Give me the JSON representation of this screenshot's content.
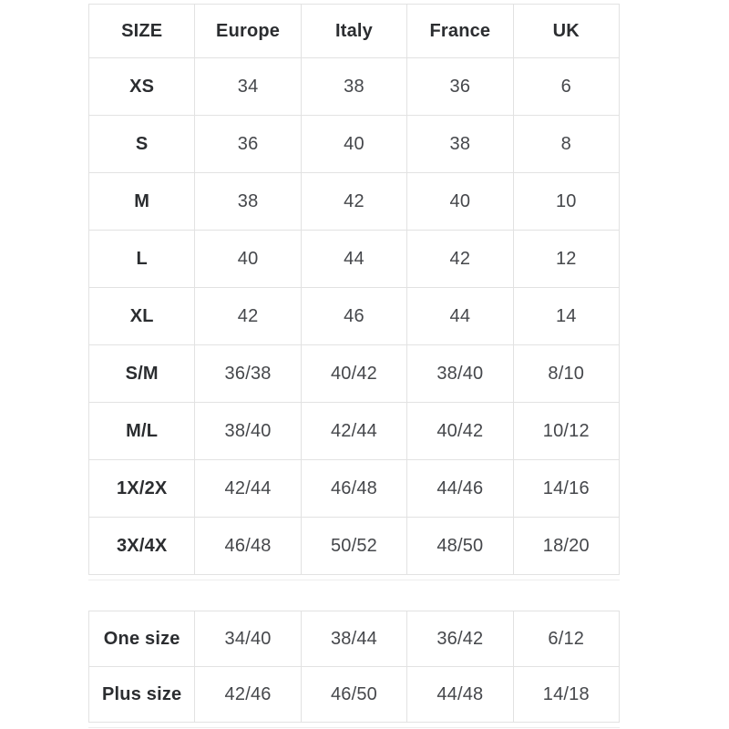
{
  "page": {
    "background_color": "#ffffff"
  },
  "colors": {
    "border": "#e2e2e2",
    "header_text": "#2b2d30",
    "value_text": "#45474b",
    "shadow_line": "#ededed"
  },
  "size_chart": {
    "columns": [
      "SIZE",
      "Europe",
      "Italy",
      "France",
      "UK"
    ],
    "rows": [
      {
        "size": "XS",
        "europe": "34",
        "italy": "38",
        "france": "36",
        "uk": "6"
      },
      {
        "size": "S",
        "europe": "36",
        "italy": "40",
        "france": "38",
        "uk": "8"
      },
      {
        "size": "M",
        "europe": "38",
        "italy": "42",
        "france": "40",
        "uk": "10"
      },
      {
        "size": "L",
        "europe": "40",
        "italy": "44",
        "france": "42",
        "uk": "12"
      },
      {
        "size": "XL",
        "europe": "42",
        "italy": "46",
        "france": "44",
        "uk": "14"
      },
      {
        "size": "S/M",
        "europe": "36/38",
        "italy": "40/42",
        "france": "38/40",
        "uk": "8/10"
      },
      {
        "size": "M/L",
        "europe": "38/40",
        "italy": "42/44",
        "france": "40/42",
        "uk": "10/12"
      },
      {
        "size": "1X/2X",
        "europe": "42/44",
        "italy": "46/48",
        "france": "44/46",
        "uk": "14/16"
      },
      {
        "size": "3X/4X",
        "europe": "46/48",
        "italy": "50/52",
        "france": "48/50",
        "uk": "18/20"
      }
    ]
  },
  "special_sizes": {
    "rows": [
      {
        "size": "One size",
        "europe": "34/40",
        "italy": "38/44",
        "france": "36/42",
        "uk": "6/12"
      },
      {
        "size": "Plus size",
        "europe": "42/46",
        "italy": "46/50",
        "france": "44/48",
        "uk": "14/18"
      }
    ]
  }
}
